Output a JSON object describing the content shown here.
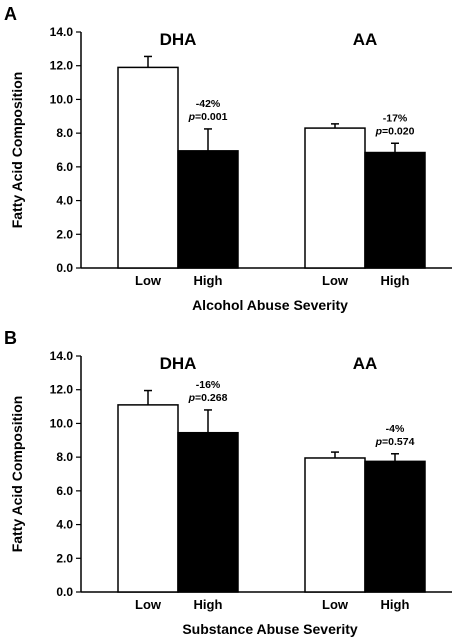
{
  "chart_data": [
    {
      "type": "bar",
      "panel": "A",
      "ylabel": "Fatty Acid Composition",
      "xlabel": "Alcohol Abuse Severity",
      "ylim": [
        0,
        14
      ],
      "yticks": [
        "0.0",
        "2.0",
        "4.0",
        "6.0",
        "8.0",
        "10.0",
        "12.0",
        "14.0"
      ],
      "groups": [
        {
          "name": "DHA",
          "bars": [
            {
              "category": "Low",
              "value": 11.9,
              "error": 0.65,
              "fill": "#ffffff"
            },
            {
              "category": "High",
              "value": 6.95,
              "error": 1.3,
              "fill": "#000000"
            }
          ],
          "annotation": {
            "change": "-42%",
            "p_label": "p",
            "p_value": "=0.001"
          }
        },
        {
          "name": "AA",
          "bars": [
            {
              "category": "Low",
              "value": 8.3,
              "error": 0.25,
              "fill": "#ffffff"
            },
            {
              "category": "High",
              "value": 6.85,
              "error": 0.55,
              "fill": "#000000"
            }
          ],
          "annotation": {
            "change": "-17%",
            "p_label": "p",
            "p_value": "=0.020"
          }
        }
      ]
    },
    {
      "type": "bar",
      "panel": "B",
      "ylabel": "Fatty Acid Composition",
      "xlabel": "Substance Abuse Severity",
      "ylim": [
        0,
        14
      ],
      "yticks": [
        "0.0",
        "2.0",
        "4.0",
        "6.0",
        "8.0",
        "10.0",
        "12.0",
        "14.0"
      ],
      "groups": [
        {
          "name": "DHA",
          "bars": [
            {
              "category": "Low",
              "value": 11.1,
              "error": 0.85,
              "fill": "#ffffff"
            },
            {
              "category": "High",
              "value": 9.45,
              "error": 1.35,
              "fill": "#000000"
            }
          ],
          "annotation": {
            "change": "-16%",
            "p_label": "p",
            "p_value": "=0.268"
          }
        },
        {
          "name": "AA",
          "bars": [
            {
              "category": "Low",
              "value": 7.95,
              "error": 0.35,
              "fill": "#ffffff"
            },
            {
              "category": "High",
              "value": 7.75,
              "error": 0.45,
              "fill": "#000000"
            }
          ],
          "annotation": {
            "change": "-4%",
            "p_label": "p",
            "p_value": "=0.574"
          }
        }
      ]
    }
  ]
}
